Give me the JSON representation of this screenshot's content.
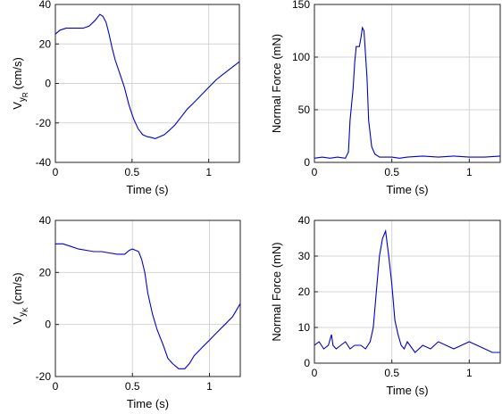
{
  "chart_data": [
    {
      "type": "line",
      "xlabel": "Time (s)",
      "ylabel": "V",
      "ylabel_sub": "y",
      "ylabel_subsub": "R",
      "ylabel_unit": "(cm/s)",
      "xlim": [
        0,
        1.2
      ],
      "ylim": [
        -40,
        40
      ],
      "xticks": [
        "0",
        "0.5",
        "1"
      ],
      "yticks": [
        "-40",
        "-20",
        "0",
        "20",
        "40"
      ],
      "grid": true,
      "series": [
        {
          "x": [
            0,
            0.03,
            0.07,
            0.1,
            0.14,
            0.18,
            0.22,
            0.26,
            0.29,
            0.31,
            0.33,
            0.35,
            0.37,
            0.39,
            0.42,
            0.45,
            0.48,
            0.51,
            0.54,
            0.57,
            0.6,
            0.63,
            0.65,
            0.68,
            0.71,
            0.74,
            0.78,
            0.82,
            0.86,
            0.9,
            0.95,
            1.0,
            1.05,
            1.1,
            1.15,
            1.2
          ],
          "y": [
            25,
            27,
            28,
            28,
            28,
            28,
            29,
            32,
            35,
            34,
            31,
            25,
            18,
            12,
            5,
            -2,
            -11,
            -18,
            -23,
            -26,
            -27,
            -27.5,
            -28,
            -27,
            -26,
            -24,
            -21,
            -17,
            -13,
            -10,
            -6,
            -2,
            2,
            5,
            8,
            11
          ]
        }
      ]
    },
    {
      "type": "line",
      "xlabel": "Time (s)",
      "ylabel": "Normal Force (mN)",
      "xlim": [
        0,
        1.2
      ],
      "ylim": [
        0,
        150
      ],
      "xticks": [
        "0",
        "0.5",
        "1"
      ],
      "yticks": [
        "0",
        "50",
        "100",
        "150"
      ],
      "grid": true,
      "series": [
        {
          "x": [
            0,
            0.05,
            0.1,
            0.15,
            0.2,
            0.22,
            0.23,
            0.25,
            0.26,
            0.27,
            0.29,
            0.3,
            0.31,
            0.32,
            0.34,
            0.35,
            0.37,
            0.39,
            0.42,
            0.45,
            0.5,
            0.55,
            0.6,
            0.7,
            0.8,
            0.9,
            1.0,
            1.1,
            1.2
          ],
          "y": [
            4,
            5,
            4,
            5,
            4,
            10,
            40,
            70,
            95,
            110,
            110,
            118,
            128,
            125,
            80,
            40,
            15,
            8,
            5,
            5,
            5,
            4,
            5,
            6,
            5,
            6,
            5,
            5,
            6
          ]
        }
      ]
    },
    {
      "type": "line",
      "xlabel": "Time (s)",
      "ylabel": "V",
      "ylabel_sub": "y",
      "ylabel_subsub": "K",
      "ylabel_unit": "(cm/s)",
      "xlim": [
        0,
        1.2
      ],
      "ylim": [
        -20,
        40
      ],
      "xticks": [
        "0",
        "0.5",
        "1"
      ],
      "yticks": [
        "-20",
        "0",
        "20",
        "40"
      ],
      "grid": true,
      "series": [
        {
          "x": [
            0,
            0.05,
            0.1,
            0.15,
            0.2,
            0.25,
            0.3,
            0.35,
            0.4,
            0.45,
            0.48,
            0.5,
            0.52,
            0.54,
            0.56,
            0.58,
            0.6,
            0.63,
            0.66,
            0.7,
            0.73,
            0.76,
            0.8,
            0.84,
            0.87,
            0.9,
            0.95,
            1.0,
            1.05,
            1.1,
            1.15,
            1.2
          ],
          "y": [
            31,
            31,
            30,
            29,
            28.5,
            28,
            28,
            27.5,
            27,
            27,
            28.5,
            29,
            28.5,
            28,
            25,
            20,
            12,
            4,
            -2,
            -8,
            -13,
            -15,
            -17,
            -17,
            -15,
            -12,
            -9,
            -6,
            -3,
            0,
            3,
            8
          ]
        }
      ]
    },
    {
      "type": "line",
      "xlabel": "Time (s)",
      "ylabel": "Normal Force (mN)",
      "xlim": [
        0,
        1.2
      ],
      "ylim": [
        0,
        40
      ],
      "xticks": [
        "0",
        "0.5",
        "1"
      ],
      "yticks": [
        "0",
        "10",
        "20",
        "30",
        "40"
      ],
      "grid": true,
      "series": [
        {
          "x": [
            0,
            0.03,
            0.06,
            0.09,
            0.11,
            0.12,
            0.14,
            0.17,
            0.2,
            0.23,
            0.26,
            0.3,
            0.33,
            0.36,
            0.38,
            0.4,
            0.42,
            0.44,
            0.46,
            0.48,
            0.5,
            0.52,
            0.54,
            0.56,
            0.58,
            0.6,
            0.65,
            0.7,
            0.75,
            0.8,
            0.85,
            0.9,
            0.95,
            1.0,
            1.05,
            1.1,
            1.15,
            1.2
          ],
          "y": [
            5,
            6,
            4,
            5,
            8,
            5,
            4,
            5,
            6,
            4,
            5,
            5,
            4,
            6,
            10,
            20,
            30,
            35,
            37,
            30,
            22,
            12,
            8,
            5,
            4,
            6,
            3,
            5,
            4,
            6,
            5,
            4,
            5,
            6,
            5,
            4,
            3,
            3
          ]
        }
      ]
    }
  ]
}
